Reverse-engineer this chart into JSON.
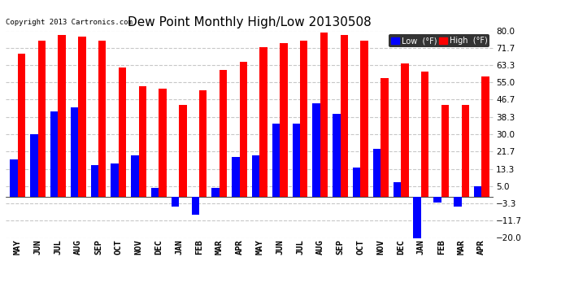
{
  "title": "Dew Point Monthly High/Low 20130508",
  "copyright": "Copyright 2013 Cartronics.com",
  "months": [
    "MAY",
    "JUN",
    "JUL",
    "AUG",
    "SEP",
    "OCT",
    "NOV",
    "DEC",
    "JAN",
    "FEB",
    "MAR",
    "APR",
    "MAY",
    "JUN",
    "JUL",
    "AUG",
    "SEP",
    "OCT",
    "NOV",
    "DEC",
    "JAN",
    "FEB",
    "MAR",
    "APR"
  ],
  "high": [
    69,
    75,
    78,
    77,
    75,
    62,
    53,
    52,
    44,
    51,
    61,
    65,
    72,
    74,
    75,
    79,
    78,
    75,
    57,
    64,
    60,
    44,
    44,
    58
  ],
  "low": [
    18,
    30,
    41,
    43,
    15,
    16,
    20,
    4,
    -5,
    -9,
    4,
    19,
    20,
    35,
    35,
    45,
    40,
    14,
    23,
    7,
    -21,
    -3,
    -5,
    5
  ],
  "ylim": [
    -20,
    80
  ],
  "yticks": [
    -20.0,
    -11.7,
    -3.3,
    5.0,
    13.3,
    21.7,
    30.0,
    38.3,
    46.7,
    55.0,
    63.3,
    71.7,
    80.0
  ],
  "high_color": "#ff0000",
  "low_color": "#0000ff",
  "bg_color": "#ffffff",
  "grid_color": "#c8c8c8",
  "bar_width": 0.38,
  "title_fontsize": 11,
  "tick_fontsize": 7.5,
  "legend_low_label": "Low  (°F)",
  "legend_high_label": "High  (°F)"
}
